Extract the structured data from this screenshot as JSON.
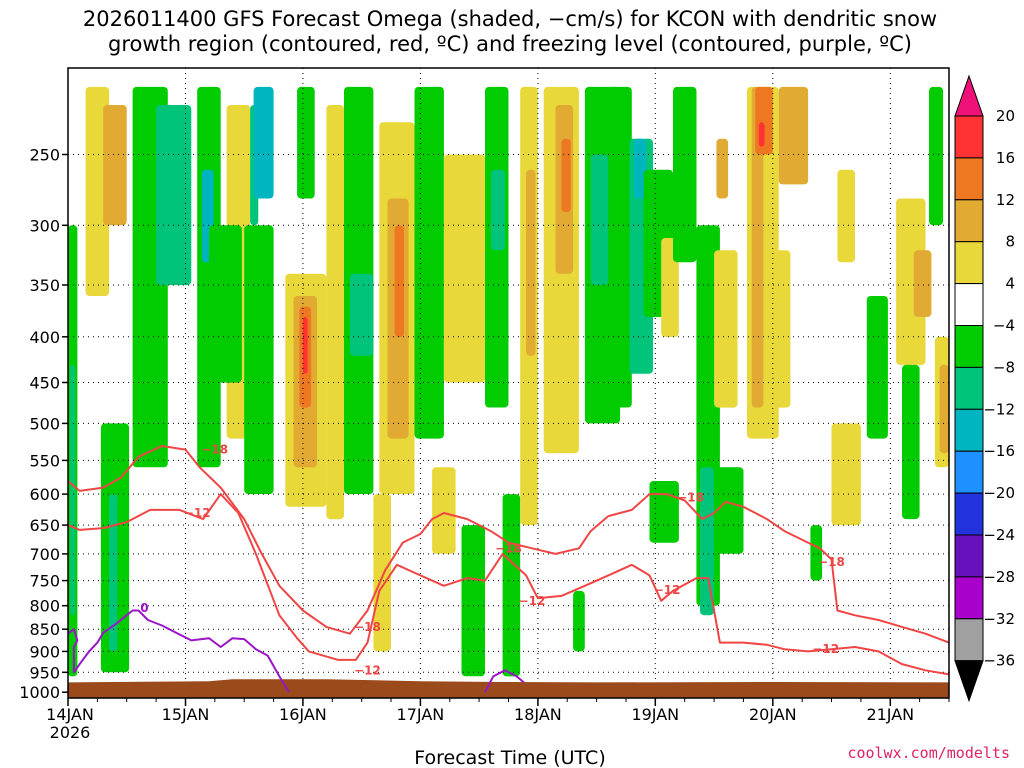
{
  "title_lines": [
    "2026011400 GFS Forecast Omega (shaded, −cm/s) for KCON with dendritic snow",
    "growth region (contoured, red, ºC) and freezing level (contoured, purple, ºC)"
  ],
  "credit": "coolwx.com/modelts",
  "chart_data": {
    "type": "heatmap",
    "xlabel": "Forecast Time (UTC)",
    "ylabel": "",
    "x_ticks": [
      "14JAN",
      "15JAN",
      "16JAN",
      "17JAN",
      "18JAN",
      "19JAN",
      "20JAN",
      "21JAN"
    ],
    "x_year_label": "2026",
    "x_range_days": [
      0,
      7.5
    ],
    "y_ticks": [
      250,
      300,
      350,
      400,
      450,
      500,
      550,
      600,
      650,
      700,
      750,
      800,
      850,
      900,
      950,
      1000
    ],
    "y_range_hpa": [
      200,
      1015
    ],
    "y_scale": "log-pressure",
    "grid": true,
    "colorbar": {
      "labels": [
        "20",
        "16",
        "12",
        "8",
        "4",
        "−4",
        "−8",
        "−12",
        "−16",
        "−20",
        "−24",
        "−28",
        "−32",
        "−36"
      ],
      "bins": [
        {
          "from": 16,
          "to": 20,
          "color": "#ff3333"
        },
        {
          "from": 12,
          "to": 16,
          "color": "#ee7722"
        },
        {
          "from": 8,
          "to": 12,
          "color": "#e0aa33"
        },
        {
          "from": 4,
          "to": 8,
          "color": "#e8d83a"
        },
        {
          "from": -4,
          "to": 4,
          "color": "#ffffff"
        },
        {
          "from": -8,
          "to": -4,
          "color": "#00cc00"
        },
        {
          "from": -12,
          "to": -8,
          "color": "#00c47a"
        },
        {
          "from": -16,
          "to": -12,
          "color": "#00b5c0"
        },
        {
          "from": -20,
          "to": -16,
          "color": "#1e90ff"
        },
        {
          "from": -24,
          "to": -20,
          "color": "#2233dd"
        },
        {
          "from": -28,
          "to": -24,
          "color": "#6611bb"
        },
        {
          "from": -32,
          "to": -28,
          "color": "#aa00cc"
        },
        {
          "from": -36,
          "to": -32,
          "color": "#a0a0a0"
        }
      ],
      "top_arrow_color": "#ee1177",
      "bottom_arrow_color": "#000000"
    },
    "ground_color": "#9b4a1c",
    "omega_patches": [
      {
        "x0": 0.0,
        "x1": 0.08,
        "p0": 300,
        "p1": 960,
        "value": -8
      },
      {
        "x0": 0.02,
        "x1": 0.06,
        "p0": 430,
        "p1": 820,
        "value": -12
      },
      {
        "x0": 0.28,
        "x1": 0.52,
        "p0": 500,
        "p1": 950,
        "value": -8
      },
      {
        "x0": 0.35,
        "x1": 0.42,
        "p0": 600,
        "p1": 900,
        "value": -12
      },
      {
        "x0": 0.15,
        "x1": 0.35,
        "p0": 210,
        "p1": 360,
        "value": 4
      },
      {
        "x0": 0.3,
        "x1": 0.5,
        "p0": 220,
        "p1": 300,
        "value": 8
      },
      {
        "x0": 0.55,
        "x1": 0.85,
        "p0": 210,
        "p1": 560,
        "value": -8
      },
      {
        "x0": 0.75,
        "x1": 1.05,
        "p0": 220,
        "p1": 350,
        "value": -12
      },
      {
        "x0": 1.1,
        "x1": 1.3,
        "p0": 210,
        "p1": 560,
        "value": -8
      },
      {
        "x0": 1.14,
        "x1": 1.24,
        "p0": 260,
        "p1": 330,
        "value": -16
      },
      {
        "x0": 1.35,
        "x1": 1.55,
        "p0": 220,
        "p1": 520,
        "value": 4
      },
      {
        "x0": 1.2,
        "x1": 1.48,
        "p0": 300,
        "p1": 450,
        "value": -8
      },
      {
        "x0": 1.5,
        "x1": 1.75,
        "p0": 300,
        "p1": 600,
        "value": -8
      },
      {
        "x0": 1.55,
        "x1": 1.62,
        "p0": 220,
        "p1": 300,
        "value": -12
      },
      {
        "x0": 1.58,
        "x1": 1.75,
        "p0": 210,
        "p1": 280,
        "value": -16
      },
      {
        "x0": 1.85,
        "x1": 2.2,
        "p0": 340,
        "p1": 620,
        "value": 4
      },
      {
        "x0": 1.92,
        "x1": 2.12,
        "p0": 360,
        "p1": 560,
        "value": 8
      },
      {
        "x0": 1.97,
        "x1": 2.07,
        "p0": 370,
        "p1": 480,
        "value": 12
      },
      {
        "x0": 2.0,
        "x1": 2.04,
        "p0": 380,
        "p1": 440,
        "value": 16
      },
      {
        "x0": 1.95,
        "x1": 2.1,
        "p0": 210,
        "p1": 280,
        "value": -8
      },
      {
        "x0": 2.2,
        "x1": 2.35,
        "p0": 220,
        "p1": 640,
        "value": 4
      },
      {
        "x0": 2.35,
        "x1": 2.6,
        "p0": 210,
        "p1": 600,
        "value": -8
      },
      {
        "x0": 2.4,
        "x1": 2.6,
        "p0": 340,
        "p1": 420,
        "value": -12
      },
      {
        "x0": 2.6,
        "x1": 2.75,
        "p0": 600,
        "p1": 900,
        "value": 4
      },
      {
        "x0": 2.65,
        "x1": 2.95,
        "p0": 230,
        "p1": 600,
        "value": 4
      },
      {
        "x0": 2.72,
        "x1": 2.9,
        "p0": 280,
        "p1": 520,
        "value": 8
      },
      {
        "x0": 2.78,
        "x1": 2.86,
        "p0": 300,
        "p1": 400,
        "value": 12
      },
      {
        "x0": 2.95,
        "x1": 3.2,
        "p0": 210,
        "p1": 520,
        "value": -8
      },
      {
        "x0": 3.1,
        "x1": 3.3,
        "p0": 560,
        "p1": 700,
        "value": 4
      },
      {
        "x0": 3.2,
        "x1": 3.55,
        "p0": 250,
        "p1": 450,
        "value": 4
      },
      {
        "x0": 3.35,
        "x1": 3.55,
        "p0": 650,
        "p1": 960,
        "value": -8
      },
      {
        "x0": 3.55,
        "x1": 3.75,
        "p0": 210,
        "p1": 480,
        "value": -8
      },
      {
        "x0": 3.6,
        "x1": 3.72,
        "p0": 260,
        "p1": 320,
        "value": -12
      },
      {
        "x0": 3.7,
        "x1": 3.85,
        "p0": 600,
        "p1": 960,
        "value": -8
      },
      {
        "x0": 3.85,
        "x1": 4.0,
        "p0": 210,
        "p1": 650,
        "value": 4
      },
      {
        "x0": 3.9,
        "x1": 3.98,
        "p0": 260,
        "p1": 420,
        "value": 8
      },
      {
        "x0": 4.05,
        "x1": 4.35,
        "p0": 210,
        "p1": 540,
        "value": 4
      },
      {
        "x0": 4.15,
        "x1": 4.3,
        "p0": 220,
        "p1": 340,
        "value": 8
      },
      {
        "x0": 4.2,
        "x1": 4.28,
        "p0": 240,
        "p1": 290,
        "value": 12
      },
      {
        "x0": 4.3,
        "x1": 4.4,
        "p0": 770,
        "p1": 900,
        "value": -8
      },
      {
        "x0": 4.4,
        "x1": 4.7,
        "p0": 210,
        "p1": 500,
        "value": -8
      },
      {
        "x0": 4.45,
        "x1": 4.6,
        "p0": 250,
        "p1": 350,
        "value": -12
      },
      {
        "x0": 4.6,
        "x1": 4.8,
        "p0": 210,
        "p1": 480,
        "value": -8
      },
      {
        "x0": 4.78,
        "x1": 4.98,
        "p0": 240,
        "p1": 440,
        "value": -12
      },
      {
        "x0": 4.82,
        "x1": 4.92,
        "p0": 240,
        "p1": 280,
        "value": -16
      },
      {
        "x0": 4.9,
        "x1": 5.15,
        "p0": 260,
        "p1": 380,
        "value": -8
      },
      {
        "x0": 4.95,
        "x1": 5.2,
        "p0": 580,
        "p1": 680,
        "value": -8
      },
      {
        "x0": 5.05,
        "x1": 5.2,
        "p0": 310,
        "p1": 400,
        "value": 4
      },
      {
        "x0": 5.15,
        "x1": 5.35,
        "p0": 210,
        "p1": 330,
        "value": -8
      },
      {
        "x0": 5.35,
        "x1": 5.55,
        "p0": 300,
        "p1": 800,
        "value": -8
      },
      {
        "x0": 5.38,
        "x1": 5.5,
        "p0": 560,
        "p1": 820,
        "value": -12
      },
      {
        "x0": 5.5,
        "x1": 5.7,
        "p0": 320,
        "p1": 480,
        "value": 4
      },
      {
        "x0": 5.5,
        "x1": 5.75,
        "p0": 560,
        "p1": 700,
        "value": -8
      },
      {
        "x0": 5.52,
        "x1": 5.62,
        "p0": 240,
        "p1": 280,
        "value": 8
      },
      {
        "x0": 5.78,
        "x1": 6.05,
        "p0": 210,
        "p1": 520,
        "value": 4
      },
      {
        "x0": 5.82,
        "x1": 5.92,
        "p0": 210,
        "p1": 480,
        "value": 8
      },
      {
        "x0": 5.85,
        "x1": 6.0,
        "p0": 210,
        "p1": 250,
        "value": 12
      },
      {
        "x0": 5.88,
        "x1": 5.93,
        "p0": 230,
        "p1": 245,
        "value": 16
      },
      {
        "x0": 6.05,
        "x1": 6.3,
        "p0": 210,
        "p1": 270,
        "value": 8
      },
      {
        "x0": 6.0,
        "x1": 6.15,
        "p0": 320,
        "p1": 480,
        "value": 4
      },
      {
        "x0": 6.32,
        "x1": 6.42,
        "p0": 650,
        "p1": 750,
        "value": -8
      },
      {
        "x0": 6.5,
        "x1": 6.75,
        "p0": 500,
        "p1": 650,
        "value": 4
      },
      {
        "x0": 6.55,
        "x1": 6.7,
        "p0": 260,
        "p1": 330,
        "value": 4
      },
      {
        "x0": 6.8,
        "x1": 6.98,
        "p0": 360,
        "p1": 520,
        "value": -8
      },
      {
        "x0": 7.05,
        "x1": 7.3,
        "p0": 280,
        "p1": 430,
        "value": 4
      },
      {
        "x0": 7.2,
        "x1": 7.35,
        "p0": 320,
        "p1": 380,
        "value": 8
      },
      {
        "x0": 7.1,
        "x1": 7.25,
        "p0": 430,
        "p1": 640,
        "value": -8
      },
      {
        "x0": 7.33,
        "x1": 7.45,
        "p0": 210,
        "p1": 300,
        "value": -8
      },
      {
        "x0": 7.38,
        "x1": 7.5,
        "p0": 400,
        "p1": 560,
        "value": 4
      },
      {
        "x0": 7.42,
        "x1": 7.5,
        "p0": 430,
        "p1": 540,
        "value": 8
      }
    ],
    "red_contours": [
      {
        "name": "-18",
        "points": [
          [
            0.0,
            580
          ],
          [
            0.1,
            595
          ],
          [
            0.3,
            590
          ],
          [
            0.45,
            575
          ],
          [
            0.6,
            545
          ],
          [
            0.8,
            530
          ],
          [
            1.0,
            535
          ],
          [
            1.12,
            560
          ],
          [
            1.3,
            590
          ],
          [
            1.5,
            640
          ],
          [
            1.65,
            700
          ],
          [
            1.8,
            760
          ],
          [
            2.0,
            810
          ],
          [
            2.2,
            845
          ],
          [
            2.4,
            860
          ],
          [
            2.55,
            810
          ],
          [
            2.7,
            730
          ],
          [
            2.85,
            680
          ],
          [
            3.0,
            665
          ],
          [
            3.1,
            640
          ],
          [
            3.2,
            630
          ],
          [
            3.4,
            640
          ],
          [
            3.6,
            660
          ],
          [
            3.75,
            680
          ],
          [
            3.95,
            690
          ],
          [
            4.15,
            700
          ],
          [
            4.35,
            690
          ],
          [
            4.45,
            660
          ],
          [
            4.6,
            635
          ],
          [
            4.8,
            625
          ],
          [
            4.95,
            600
          ],
          [
            5.1,
            600
          ],
          [
            5.25,
            610
          ],
          [
            5.4,
            640
          ],
          [
            5.5,
            630
          ],
          [
            5.6,
            612
          ],
          [
            5.75,
            620
          ],
          [
            5.95,
            640
          ],
          [
            6.1,
            660
          ],
          [
            6.3,
            680
          ],
          [
            6.4,
            690
          ],
          [
            6.5,
            710
          ],
          [
            6.55,
            810
          ],
          [
            6.7,
            820
          ],
          [
            6.9,
            830
          ],
          [
            7.1,
            845
          ],
          [
            7.3,
            860
          ],
          [
            7.5,
            880
          ]
        ]
      },
      {
        "name": "-12",
        "points": [
          [
            0.0,
            650
          ],
          [
            0.1,
            658
          ],
          [
            0.3,
            655
          ],
          [
            0.5,
            645
          ],
          [
            0.7,
            625
          ],
          [
            0.95,
            625
          ],
          [
            1.15,
            640
          ],
          [
            1.3,
            600
          ],
          [
            1.45,
            630
          ],
          [
            1.6,
            700
          ],
          [
            1.8,
            820
          ],
          [
            1.95,
            870
          ],
          [
            2.05,
            900
          ],
          [
            2.3,
            920
          ],
          [
            2.45,
            920
          ],
          [
            2.55,
            880
          ],
          [
            2.65,
            770
          ],
          [
            2.8,
            720
          ],
          [
            3.0,
            740
          ],
          [
            3.2,
            760
          ],
          [
            3.4,
            745
          ],
          [
            3.55,
            750
          ],
          [
            3.7,
            700
          ],
          [
            3.9,
            740
          ],
          [
            4.0,
            785
          ],
          [
            4.2,
            780
          ],
          [
            4.4,
            760
          ],
          [
            4.6,
            740
          ],
          [
            4.8,
            720
          ],
          [
            4.95,
            740
          ],
          [
            5.05,
            790
          ],
          [
            5.15,
            770
          ],
          [
            5.35,
            745
          ],
          [
            5.45,
            745
          ],
          [
            5.55,
            880
          ],
          [
            5.75,
            880
          ],
          [
            5.95,
            885
          ],
          [
            6.1,
            895
          ],
          [
            6.3,
            900
          ],
          [
            6.5,
            895
          ],
          [
            6.7,
            890
          ],
          [
            6.9,
            900
          ],
          [
            7.1,
            930
          ],
          [
            7.3,
            945
          ],
          [
            7.5,
            955
          ]
        ]
      }
    ],
    "red_labels": [
      {
        "text": "−18",
        "x": 1.25,
        "p": 535
      },
      {
        "text": "−12",
        "x": 1.1,
        "p": 630
      },
      {
        "text": "−18",
        "x": 2.55,
        "p": 845
      },
      {
        "text": "−12",
        "x": 2.55,
        "p": 945
      },
      {
        "text": "−18",
        "x": 3.75,
        "p": 690
      },
      {
        "text": "−12",
        "x": 3.95,
        "p": 790
      },
      {
        "text": "−18",
        "x": 5.3,
        "p": 605
      },
      {
        "text": "−12",
        "x": 5.1,
        "p": 768
      },
      {
        "text": "−18",
        "x": 6.5,
        "p": 715
      },
      {
        "text": "−12",
        "x": 6.45,
        "p": 895
      }
    ],
    "purple_contours": [
      {
        "name": "0",
        "points": [
          [
            0.0,
            860
          ],
          [
            0.05,
            850
          ],
          [
            0.08,
            875
          ],
          [
            0.05,
            890
          ],
          [
            0.05,
            950
          ],
          [
            0.1,
            930
          ],
          [
            0.18,
            900
          ],
          [
            0.25,
            880
          ],
          [
            0.3,
            858
          ],
          [
            0.4,
            840
          ],
          [
            0.55,
            810
          ],
          [
            0.6,
            810
          ],
          [
            0.68,
            830
          ],
          [
            0.8,
            842
          ],
          [
            0.9,
            855
          ],
          [
            1.05,
            875
          ],
          [
            1.2,
            870
          ],
          [
            1.3,
            890
          ],
          [
            1.4,
            870
          ],
          [
            1.5,
            872
          ],
          [
            1.6,
            895
          ],
          [
            1.7,
            910
          ],
          [
            1.8,
            960
          ],
          [
            1.88,
            1000
          ]
        ]
      },
      {
        "name": "0",
        "points": [
          [
            3.55,
            1000
          ],
          [
            3.62,
            960
          ],
          [
            3.72,
            945
          ],
          [
            3.82,
            960
          ],
          [
            3.88,
            975
          ]
        ]
      }
    ],
    "purple_labels": [
      {
        "text": "0",
        "x": 0.65,
        "p": 805
      }
    ]
  }
}
